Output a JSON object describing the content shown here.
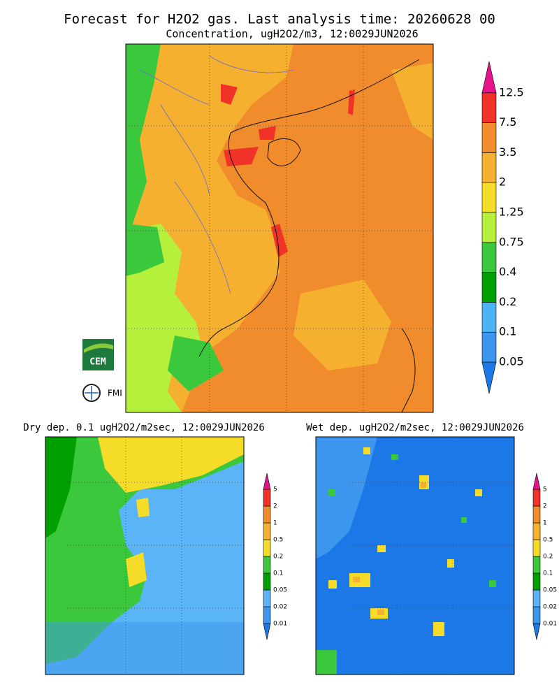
{
  "header": {
    "title": "Forecast for H2O2 gas. Last analysis time: 20260628 00",
    "subtitle": "Concentration, ugH2O2/m3, 12:0029JUN2026"
  },
  "main_legend": {
    "labels": [
      "0.05",
      "0.1",
      "0.2",
      "0.4",
      "0.75",
      "1.25",
      "2",
      "3.5",
      "7.5",
      "12.5"
    ],
    "colors": [
      "#1c78e6",
      "#3c96ee",
      "#4cb4f5",
      "#00a000",
      "#3cc83c",
      "#b4f03c",
      "#f5dc28",
      "#f5b030",
      "#f08c2c",
      "#f03228",
      "#e6148c"
    ]
  },
  "panels": [
    {
      "title": "Dry dep. 0.1 ugH2O2/m2sec, 12:0029JUN2026",
      "legend": {
        "labels": [
          "0.01",
          "0.02",
          "0.05",
          "0.1",
          "0.2",
          "0.5",
          "1",
          "2",
          "5"
        ],
        "colors": [
          "#1c78e6",
          "#3c96ee",
          "#5ab4f5",
          "#00a000",
          "#3cc83c",
          "#f5dc28",
          "#f5b030",
          "#f08c2c",
          "#f03228",
          "#e6148c"
        ]
      }
    },
    {
      "title": "Wet dep. ugH2O2/m2sec, 12:0029JUN2026",
      "legend": {
        "labels": [
          "0.01",
          "0.02",
          "0.05",
          "0.1",
          "0.2",
          "0.5",
          "1",
          "2",
          "5"
        ],
        "colors": [
          "#1c78e6",
          "#3c96ee",
          "#5ab4f5",
          "#00a000",
          "#3cc83c",
          "#f5dc28",
          "#f5b030",
          "#f08c2c",
          "#f03228",
          "#e6148c"
        ]
      }
    }
  ],
  "logos": {
    "cem": "CEM",
    "fmi": "FMI"
  }
}
